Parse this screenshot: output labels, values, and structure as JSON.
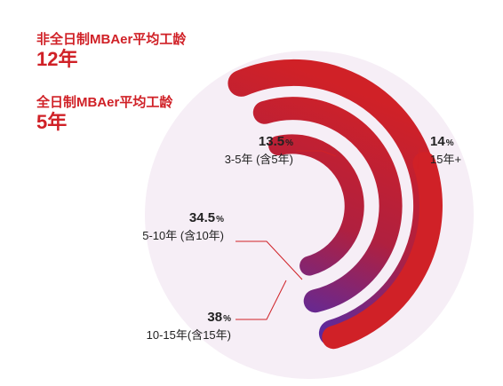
{
  "stats": {
    "parttime": {
      "label": "非全日制MBAer平均工龄",
      "value": "12年"
    },
    "fulltime": {
      "label": "全日制MBAer平均工龄",
      "value": "5年"
    }
  },
  "colors": {
    "accent": "#d02127",
    "background_circle": "#f6eef6",
    "gradient_end": "#5a2aa0"
  },
  "chart_data": {
    "type": "radial-bar",
    "title": "",
    "unit": "%",
    "categories": [
      "3-5年 (含5年)",
      "5-10年 (含10年)",
      "10-15年(含15年)",
      "15年+"
    ],
    "values": [
      13.5,
      34.5,
      38,
      14
    ],
    "labels": [
      {
        "value_text": "13.5",
        "unit": "%",
        "range": "3-5年 (含5年)"
      },
      {
        "value_text": "34.5",
        "unit": "%",
        "range": "5-10年 (含10年)"
      },
      {
        "value_text": "38",
        "unit": "%",
        "range": "10-15年(含15年)"
      },
      {
        "value_text": "14",
        "unit": "%",
        "range": "15年+"
      }
    ]
  }
}
